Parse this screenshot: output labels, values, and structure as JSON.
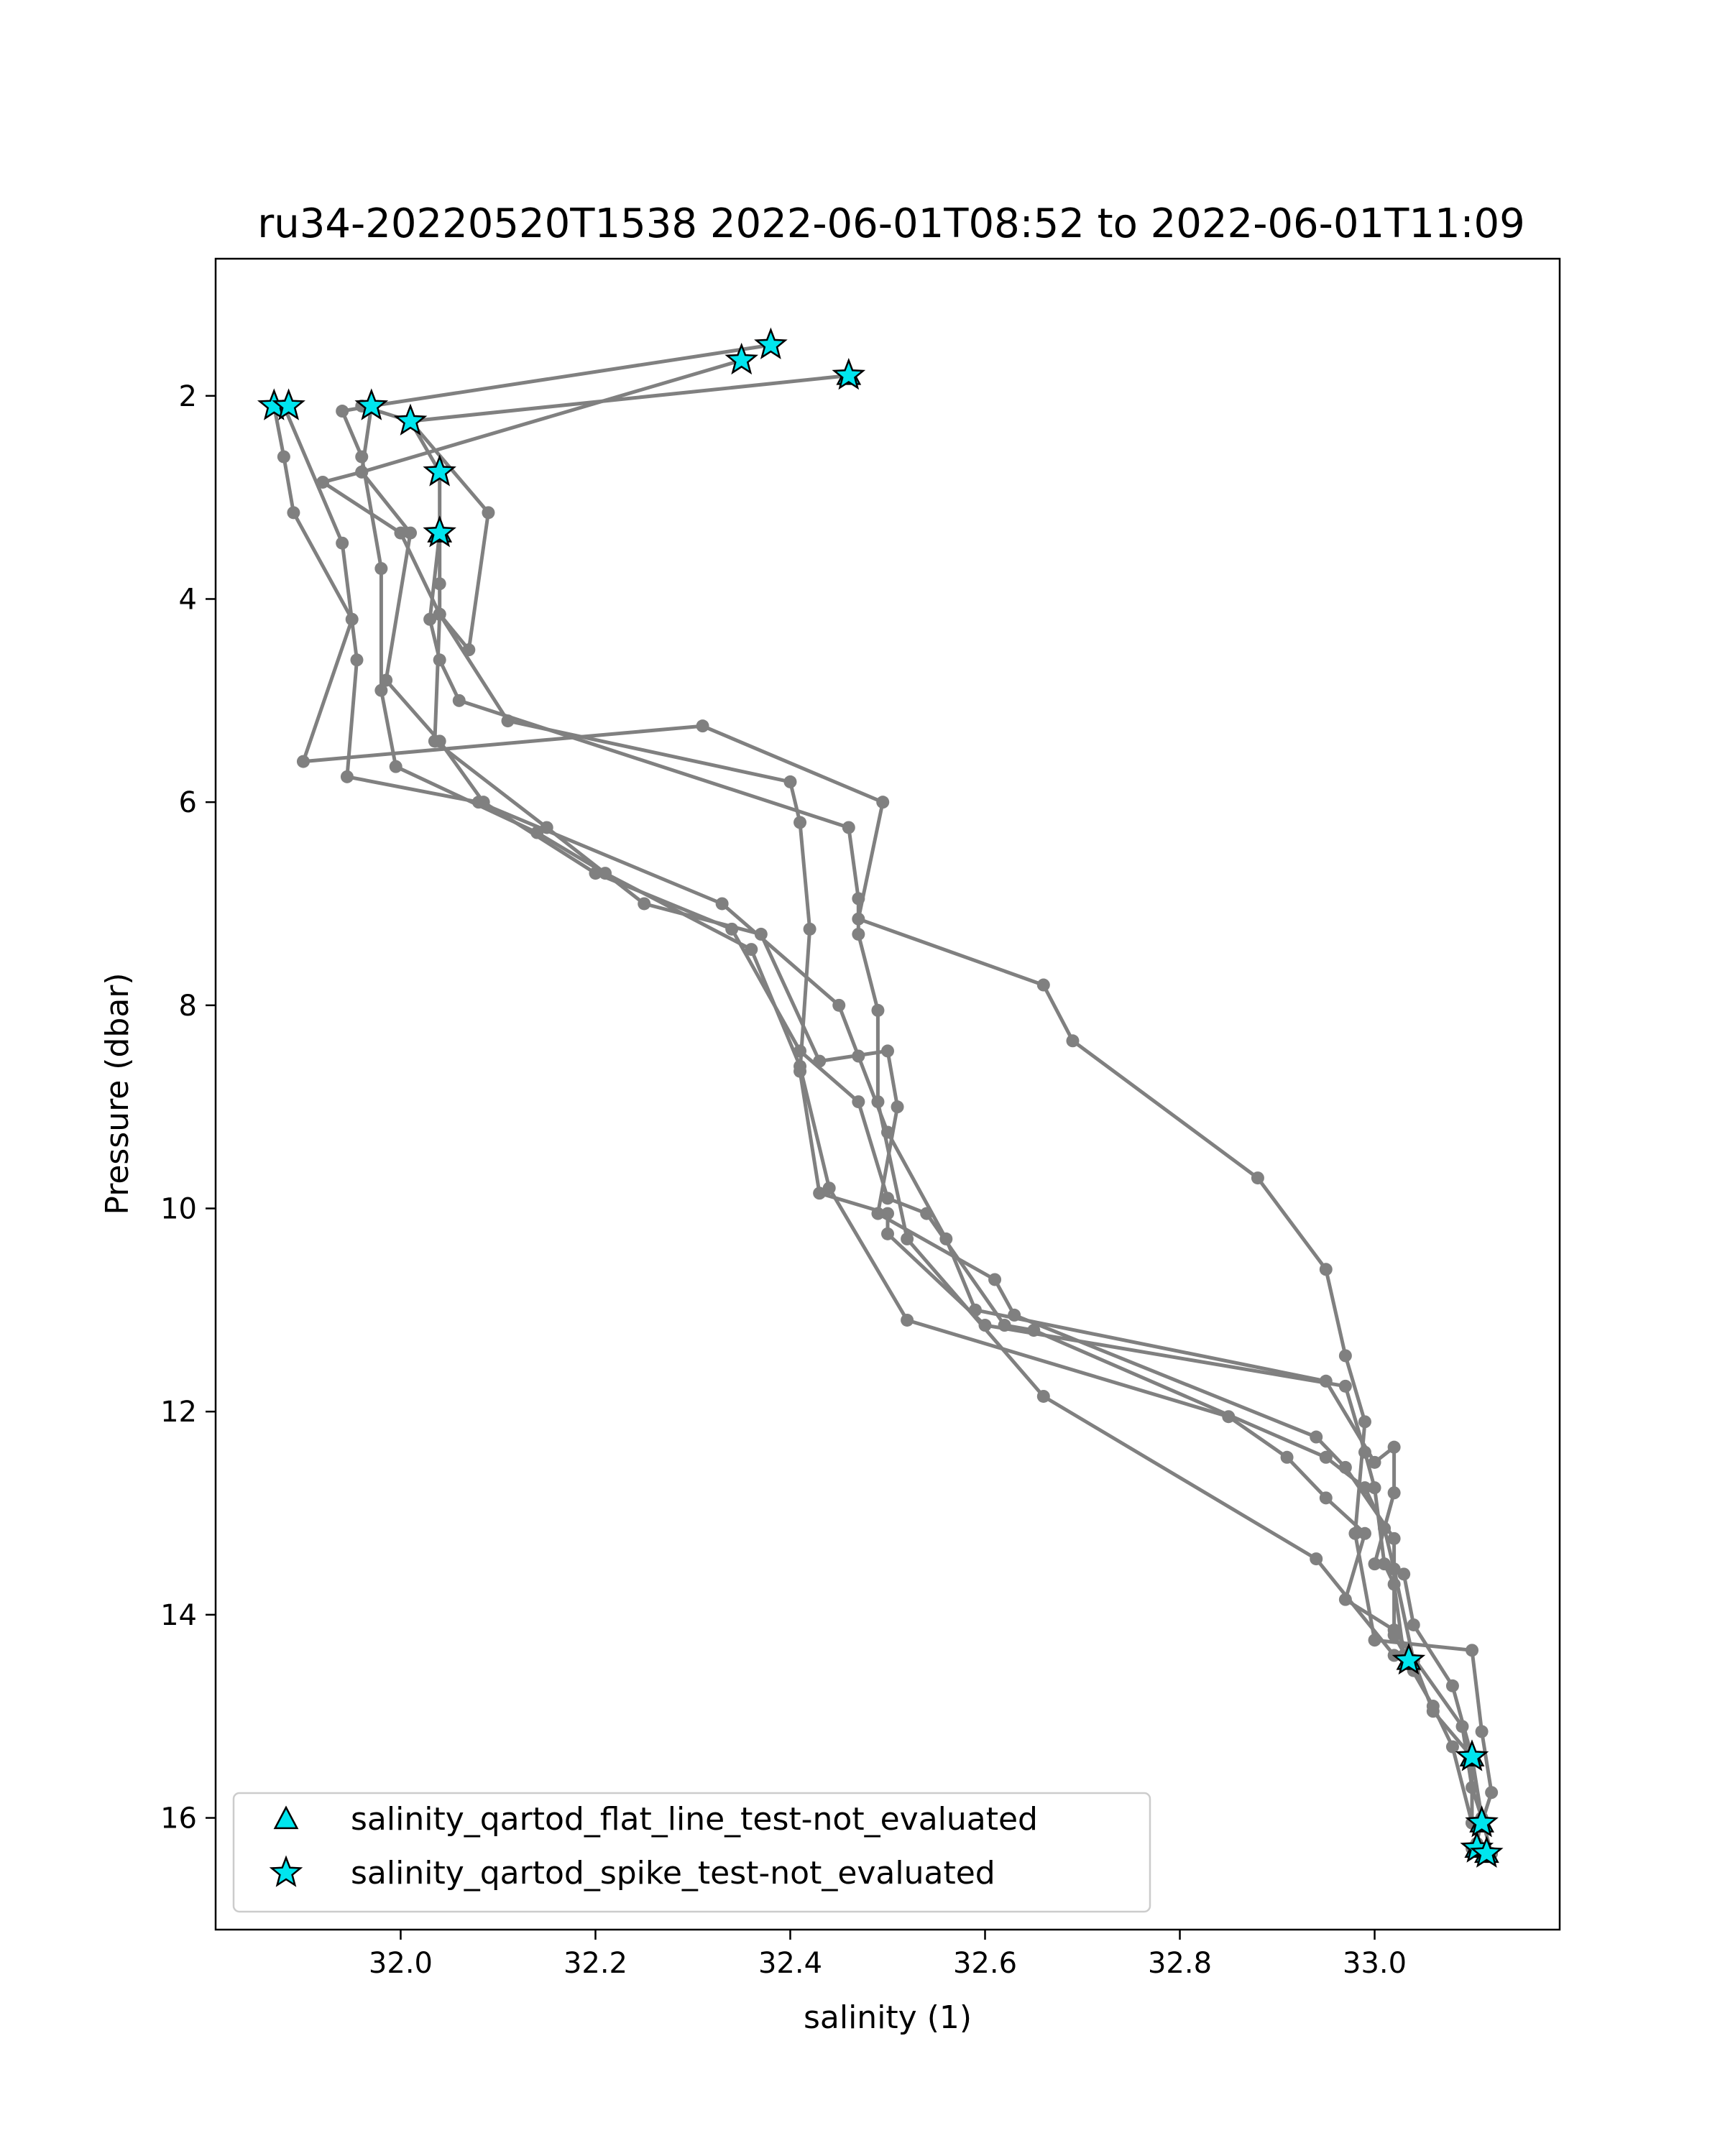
{
  "chart_data": {
    "type": "line",
    "title": "ru34-20220520T1538 2022-06-01T08:52 to 2022-06-01T11:09",
    "xlabel": "salinity (1)",
    "ylabel": "Pressure (dbar)",
    "xlim": [
      31.81,
      33.19
    ],
    "ylim": [
      17.1,
      0.65
    ],
    "y_inverted": true,
    "grid": false,
    "x_ticks": [
      32.0,
      32.2,
      32.4,
      32.6,
      32.8,
      33.0
    ],
    "x_tick_labels": [
      "32.0",
      "32.2",
      "32.4",
      "32.6",
      "32.8",
      "33.0"
    ],
    "y_ticks": [
      2,
      4,
      6,
      8,
      10,
      12,
      14,
      16
    ],
    "y_tick_labels": [
      "2",
      "4",
      "6",
      "8",
      "10",
      "12",
      "14",
      "16"
    ],
    "line_color": "#808080",
    "marker_color": "#808080",
    "flag_color": "#00e5ee",
    "legend_position": "lower-left",
    "legend": [
      {
        "label": "salinity_qartod_flat_line_test-not_evaluated",
        "marker": "triangle"
      },
      {
        "label": "salinity_qartod_spike_test-not_evaluated",
        "marker": "star"
      }
    ],
    "series": [
      {
        "points": [
          [
            31.87,
            2.1
          ],
          [
            31.88,
            2.6
          ],
          [
            31.89,
            3.15
          ],
          [
            31.95,
            4.2
          ],
          [
            31.9,
            5.6
          ],
          [
            32.31,
            5.25
          ],
          [
            32.495,
            6.0
          ],
          [
            32.47,
            7.15
          ],
          [
            32.66,
            7.8
          ],
          [
            32.69,
            8.35
          ],
          [
            32.88,
            9.7
          ],
          [
            32.95,
            10.6
          ],
          [
            32.97,
            11.45
          ],
          [
            32.99,
            12.1
          ],
          [
            32.98,
            13.2
          ],
          [
            33.0,
            14.25
          ],
          [
            33.1,
            14.35
          ],
          [
            33.11,
            15.15
          ],
          [
            33.12,
            15.75
          ],
          [
            33.11,
            16.05
          ],
          [
            33.1,
            16.3
          ]
        ]
      },
      {
        "points": [
          [
            31.88,
            2.1
          ],
          [
            31.94,
            3.45
          ],
          [
            31.955,
            4.6
          ],
          [
            31.945,
            5.75
          ],
          [
            32.08,
            6.0
          ],
          [
            32.33,
            7.0
          ],
          [
            32.45,
            8.0
          ],
          [
            32.47,
            8.5
          ],
          [
            32.5,
            9.25
          ],
          [
            32.56,
            10.3
          ],
          [
            32.59,
            11.0
          ],
          [
            32.95,
            11.7
          ],
          [
            33.0,
            12.5
          ],
          [
            33.02,
            12.35
          ],
          [
            33.02,
            12.8
          ],
          [
            33.0,
            13.5
          ],
          [
            33.03,
            13.6
          ],
          [
            33.04,
            14.1
          ],
          [
            33.08,
            14.7
          ],
          [
            33.1,
            15.4
          ],
          [
            33.11,
            16.0
          ],
          [
            33.12,
            16.35
          ]
        ]
      },
      {
        "points": [
          [
            31.97,
            2.1
          ],
          [
            31.96,
            2.75
          ],
          [
            32.01,
            3.35
          ],
          [
            31.985,
            4.8
          ],
          [
            32.04,
            5.4
          ],
          [
            32.085,
            6.0
          ],
          [
            32.2,
            6.7
          ],
          [
            32.34,
            7.25
          ],
          [
            32.41,
            8.45
          ],
          [
            32.47,
            8.95
          ],
          [
            32.5,
            9.9
          ],
          [
            32.54,
            10.05
          ],
          [
            32.62,
            11.15
          ],
          [
            32.65,
            11.2
          ],
          [
            32.95,
            12.45
          ],
          [
            32.99,
            12.75
          ],
          [
            33.01,
            13.15
          ],
          [
            33.02,
            13.55
          ],
          [
            33.04,
            14.45
          ],
          [
            33.06,
            14.95
          ],
          [
            33.1,
            15.4
          ],
          [
            33.1,
            16.05
          ],
          [
            33.11,
            16.3
          ]
        ]
      },
      {
        "points": [
          [
            32.38,
            1.5
          ],
          [
            31.97,
            2.1
          ],
          [
            31.94,
            2.15
          ],
          [
            31.96,
            2.6
          ],
          [
            31.98,
            3.7
          ],
          [
            31.98,
            4.9
          ],
          [
            31.995,
            5.65
          ],
          [
            32.14,
            6.3
          ],
          [
            32.21,
            6.7
          ],
          [
            32.36,
            7.45
          ],
          [
            32.41,
            8.6
          ],
          [
            32.44,
            9.8
          ],
          [
            32.52,
            11.1
          ],
          [
            32.85,
            12.05
          ],
          [
            32.91,
            12.45
          ],
          [
            32.95,
            12.85
          ],
          [
            32.99,
            13.2
          ],
          [
            32.97,
            13.85
          ],
          [
            33.02,
            14.15
          ],
          [
            33.09,
            15.1
          ],
          [
            33.1,
            15.7
          ],
          [
            33.11,
            16.0
          ],
          [
            33.105,
            16.25
          ]
        ]
      },
      {
        "points": [
          [
            32.35,
            1.65
          ],
          [
            31.96,
            2.75
          ],
          [
            31.92,
            2.85
          ],
          [
            32.0,
            3.35
          ],
          [
            32.04,
            4.15
          ],
          [
            32.11,
            5.2
          ],
          [
            32.4,
            5.8
          ],
          [
            32.41,
            6.2
          ],
          [
            32.42,
            7.25
          ],
          [
            32.41,
            8.65
          ],
          [
            32.43,
            9.85
          ],
          [
            32.5,
            10.05
          ],
          [
            32.5,
            10.25
          ],
          [
            32.6,
            11.15
          ],
          [
            32.97,
            11.75
          ],
          [
            32.99,
            12.4
          ],
          [
            33.0,
            12.75
          ],
          [
            33.01,
            13.5
          ],
          [
            33.02,
            13.7
          ],
          [
            33.03,
            14.4
          ],
          [
            33.06,
            14.9
          ],
          [
            33.08,
            15.3
          ],
          [
            33.1,
            16.05
          ]
        ]
      },
      {
        "points": [
          [
            32.46,
            1.8
          ],
          [
            32.01,
            2.25
          ],
          [
            32.04,
            2.75
          ],
          [
            32.04,
            3.35
          ],
          [
            32.03,
            4.2
          ],
          [
            32.04,
            4.6
          ],
          [
            32.06,
            5.0
          ],
          [
            32.46,
            6.25
          ],
          [
            32.47,
            6.95
          ],
          [
            32.47,
            7.3
          ],
          [
            32.49,
            8.05
          ],
          [
            32.49,
            8.95
          ],
          [
            32.52,
            10.3
          ],
          [
            32.66,
            11.85
          ],
          [
            32.94,
            13.45
          ],
          [
            33.02,
            14.4
          ]
        ]
      },
      {
        "points": [
          [
            32.04,
            3.35
          ],
          [
            32.04,
            3.85
          ],
          [
            32.04,
            4.15
          ],
          [
            32.07,
            4.5
          ],
          [
            32.09,
            3.15
          ],
          [
            32.01,
            2.25
          ],
          [
            31.96,
            2.1
          ]
        ]
      },
      {
        "points": [
          [
            32.04,
            4.15
          ],
          [
            32.035,
            5.4
          ],
          [
            32.15,
            6.25
          ],
          [
            32.25,
            7.0
          ],
          [
            32.37,
            7.3
          ],
          [
            32.43,
            8.55
          ],
          [
            32.5,
            8.45
          ],
          [
            32.51,
            9.0
          ],
          [
            32.49,
            10.05
          ],
          [
            32.61,
            10.7
          ],
          [
            32.63,
            11.05
          ],
          [
            32.94,
            12.25
          ],
          [
            32.97,
            12.55
          ],
          [
            33.02,
            13.25
          ],
          [
            33.02,
            14.2
          ],
          [
            33.04,
            14.55
          ]
        ]
      }
    ],
    "spike_flags": [
      [
        32.38,
        1.5
      ],
      [
        32.35,
        1.65
      ],
      [
        32.46,
        1.8
      ],
      [
        31.87,
        2.1
      ],
      [
        31.885,
        2.1
      ],
      [
        31.97,
        2.1
      ],
      [
        32.01,
        2.25
      ],
      [
        32.04,
        2.75
      ],
      [
        32.04,
        3.35
      ],
      [
        33.035,
        14.45
      ],
      [
        33.1,
        15.4
      ],
      [
        33.11,
        16.05
      ],
      [
        33.105,
        16.3
      ],
      [
        33.115,
        16.35
      ]
    ],
    "flat_line_flags": [
      [
        33.035,
        14.45
      ],
      [
        33.1,
        15.4
      ],
      [
        33.11,
        16.05
      ],
      [
        33.105,
        16.3
      ],
      [
        33.115,
        16.35
      ],
      [
        32.04,
        3.35
      ],
      [
        32.46,
        1.8
      ]
    ]
  }
}
